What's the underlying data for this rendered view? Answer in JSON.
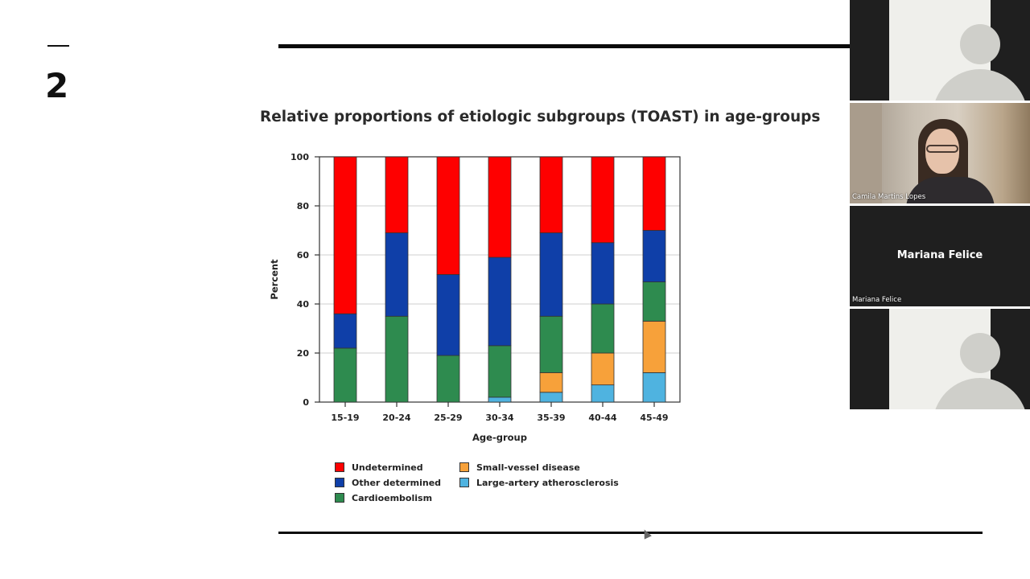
{
  "slide": {
    "number": "2"
  },
  "chart_data": {
    "type": "bar",
    "stacked": true,
    "title": "Relative proportions of etiologic subgroups (TOAST) in age-groups",
    "xlabel": "Age-group",
    "ylabel": "Percent",
    "ylim": [
      0,
      100
    ],
    "yticks": [
      0,
      20,
      40,
      60,
      80,
      100
    ],
    "grid": true,
    "legend_position": "bottom",
    "categories": [
      "15-19",
      "20-24",
      "25-29",
      "30-34",
      "35-39",
      "40-44",
      "45-49"
    ],
    "series": [
      {
        "name": "Large-artery atherosclerosis",
        "color": "#4fb3e0",
        "values": [
          0,
          0,
          0,
          2,
          4,
          7,
          12
        ]
      },
      {
        "name": "Small-vessel disease",
        "color": "#f7a13a",
        "values": [
          0,
          0,
          0,
          0,
          8,
          13,
          21
        ]
      },
      {
        "name": "Cardioembolism",
        "color": "#2e8b4f",
        "values": [
          22,
          35,
          19,
          21,
          23,
          20,
          16
        ]
      },
      {
        "name": "Other determined",
        "color": "#0f3fa8",
        "values": [
          14,
          34,
          33,
          36,
          34,
          25,
          21
        ]
      },
      {
        "name": "Undetermined",
        "color": "#fe0000",
        "values": [
          64,
          31,
          48,
          41,
          31,
          35,
          30
        ]
      }
    ]
  },
  "legend": {
    "undetermined": "Undetermined",
    "other_determined": "Other determined",
    "cardioembolism": "Cardioembolism",
    "small_vessel": "Small-vessel disease",
    "large_artery": "Large-artery atherosclerosis"
  },
  "legend_colors": {
    "undetermined": "#fe0000",
    "other_determined": "#0f3fa8",
    "cardioembolism": "#2e8b4f",
    "small_vessel": "#f7a13a",
    "large_artery": "#4fb3e0"
  },
  "participants": [
    {
      "name": "",
      "video": false
    },
    {
      "name": "Camila Martins Lopes",
      "video": true
    },
    {
      "name": "Mariana Felice",
      "video": false,
      "display_name": "Mariana Felice"
    },
    {
      "name": "",
      "video": false
    }
  ]
}
